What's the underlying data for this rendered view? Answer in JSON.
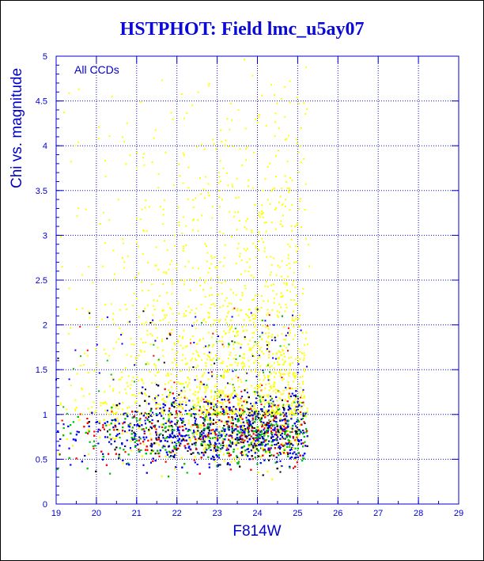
{
  "title": "HSTPHOT: Field lmc_u5ay07",
  "chart_data": {
    "type": "scatter",
    "title": "HSTPHOT: Field lmc_u5ay07",
    "xlabel": "F814W",
    "ylabel": "Chi vs. magnitude",
    "annotation": "All CCDs",
    "xlim": [
      19,
      29
    ],
    "ylim": [
      0,
      5
    ],
    "x_ticks": [
      "19",
      "20",
      "21",
      "22",
      "23",
      "24",
      "25",
      "26",
      "27",
      "28",
      "29"
    ],
    "y_ticks": [
      "0",
      "0.5",
      "1",
      "1.5",
      "2",
      "2.5",
      "3",
      "3.5",
      "4",
      "4.5",
      "5"
    ],
    "grid": true,
    "series_colors": [
      "#ffff00",
      "#000000",
      "#ff0000",
      "#00c000",
      "#0000ff"
    ],
    "density_profile": [
      {
        "x": 19.0,
        "count": 40
      },
      {
        "x": 20.0,
        "count": 120
      },
      {
        "x": 21.0,
        "count": 220
      },
      {
        "x": 22.0,
        "count": 360
      },
      {
        "x": 23.0,
        "count": 520
      },
      {
        "x": 24.0,
        "count": 650
      },
      {
        "x": 25.0,
        "count": 580
      },
      {
        "x": 25.3,
        "count": 0
      }
    ],
    "locus": {
      "chi_center": 0.8,
      "chi_spread": 0.18
    },
    "outlier_upper_chi": 5.0
  },
  "colors": {
    "axis": "#0000cc",
    "grid": "#1010d0",
    "title": "#0a0ad6"
  }
}
